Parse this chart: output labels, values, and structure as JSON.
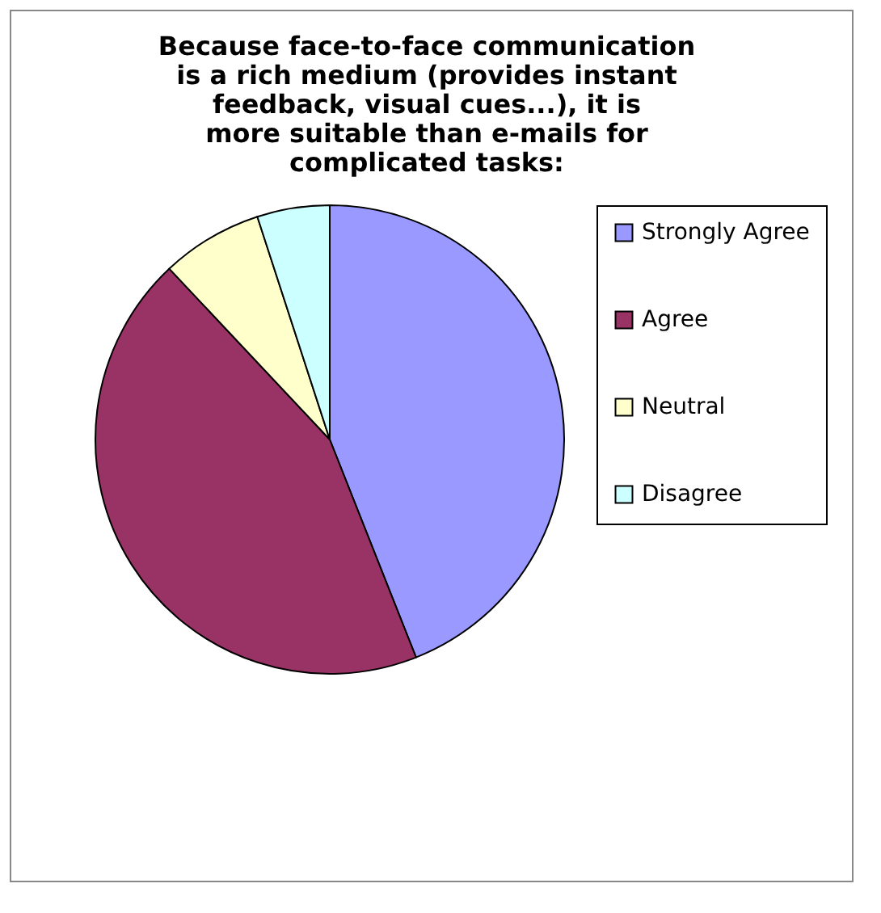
{
  "chart_data": {
    "type": "pie",
    "title": "Because face-to-face communication is a rich medium (provides instant feedback, visual cues...), it is more suitable than e-mails for complicated tasks:",
    "categories": [
      "Strongly Agree",
      "Agree",
      "Neutral",
      "Disagree"
    ],
    "values": [
      44,
      44,
      7,
      5
    ],
    "colors": [
      "#9999ff",
      "#993366",
      "#ffffcc",
      "#ccffff"
    ],
    "legend": "right"
  }
}
